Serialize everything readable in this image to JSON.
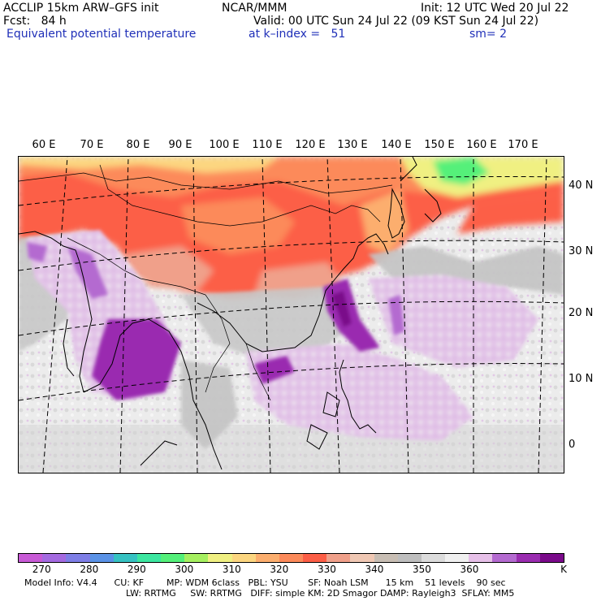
{
  "header": {
    "line1_left": "ACCLIP 15km ARW–GFS init",
    "line1_center": "NCAR/MMM",
    "line1_right": "Init: 12 UTC Wed 20 Jul 22",
    "line2_left": "Fcst:   84 h",
    "line2_right": "Valid: 00 UTC Sun 24 Jul 22 (09 KST Sun 24 Jul 22)",
    "line3_left": "Equivalent potential temperature",
    "line3_center": "at k–index =   51",
    "line3_right": "sm= 2"
  },
  "map": {
    "longitude_labels": [
      "60 E",
      "70 E",
      "80 E",
      "90 E",
      "100 E",
      "110 E",
      "120 E",
      "130 E",
      "140 E",
      "150 E",
      "160 E",
      "170 E"
    ],
    "latitude_labels": [
      "40 N",
      "30 N",
      "20 N",
      "10 N",
      "0"
    ]
  },
  "colorbar": {
    "colors": [
      "#c85ad6",
      "#a46ae0",
      "#7e7ee6",
      "#5a92e6",
      "#36c2c2",
      "#3ce6a0",
      "#54f07a",
      "#a6f060",
      "#f0f082",
      "#fcd680",
      "#fcae6e",
      "#fc8a5a",
      "#fc5e46",
      "#f0a08a",
      "#f0c8b4",
      "#c8beb4",
      "#bebebe",
      "#dcdcdc",
      "#f0f0f0",
      "#e6c0e8",
      "#b46ad0",
      "#9a2cb0",
      "#7a0a8a"
    ],
    "tick_labels": [
      "270",
      "280",
      "290",
      "300",
      "310",
      "320",
      "330",
      "340",
      "350",
      "360"
    ],
    "unit": "K"
  },
  "footer": {
    "line1": "Model Info: V4.4      CU: KF        MP: WDM 6class   PBL: YSU       SF: Noah LSM      15 km    51 levels    90 sec",
    "line2": "LW: RRTMG     SW: RRTMG   DIFF: simple KM: 2D Smagor DAMP: Rayleigh3  SFLAY: MM5"
  }
}
